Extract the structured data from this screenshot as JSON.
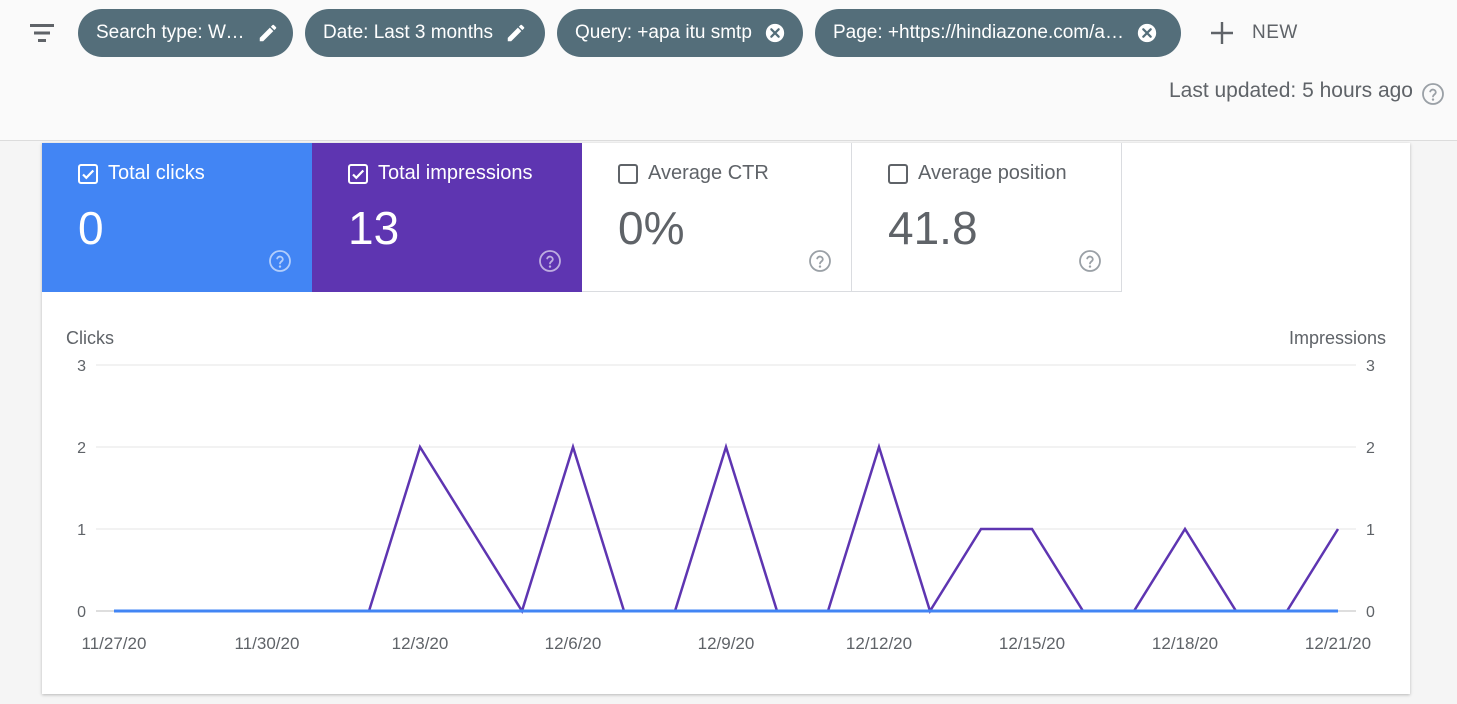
{
  "filters": {
    "chips": [
      {
        "label": "Search type: Web",
        "action": "edit"
      },
      {
        "label": "Date: Last 3 months",
        "action": "edit"
      },
      {
        "label": "Query: +apa itu smtp",
        "action": "remove"
      },
      {
        "label": "Page: +https://hindiazone.com/a…",
        "action": "remove"
      }
    ],
    "new_label": "NEW"
  },
  "status": {
    "last_updated": "Last updated: 5 hours ago"
  },
  "metrics": [
    {
      "label": "Total clicks",
      "value": "0",
      "checked": true,
      "color": "#4285f4"
    },
    {
      "label": "Total impressions",
      "value": "13",
      "checked": true,
      "color": "#5e35b1"
    },
    {
      "label": "Average CTR",
      "value": "0%",
      "checked": false
    },
    {
      "label": "Average position",
      "value": "41.8",
      "checked": false
    }
  ],
  "chart_data": {
    "type": "line",
    "left_axis_label": "Clicks",
    "right_axis_label": "Impressions",
    "y_left_ticks": [
      "0",
      "1",
      "2",
      "3"
    ],
    "y_right_ticks": [
      "0",
      "1",
      "2",
      "3"
    ],
    "ylim": [
      0,
      3
    ],
    "x_tick_labels": [
      "11/27/20",
      "11/30/20",
      "12/3/20",
      "12/6/20",
      "12/9/20",
      "12/12/20",
      "12/15/20",
      "12/18/20",
      "12/21/20"
    ],
    "x": [
      "11/27/20",
      "11/28/20",
      "11/29/20",
      "11/30/20",
      "12/1/20",
      "12/2/20",
      "12/3/20",
      "12/4/20",
      "12/5/20",
      "12/6/20",
      "12/7/20",
      "12/8/20",
      "12/9/20",
      "12/10/20",
      "12/11/20",
      "12/12/20",
      "12/13/20",
      "12/14/20",
      "12/15/20",
      "12/16/20",
      "12/17/20",
      "12/18/20",
      "12/19/20",
      "12/20/20",
      "12/21/20"
    ],
    "series": [
      {
        "name": "Impressions",
        "axis": "right",
        "color": "#5e35b1",
        "values": [
          0,
          0,
          0,
          0,
          0,
          0,
          2,
          1,
          0,
          2,
          0,
          0,
          2,
          0,
          0,
          2,
          0,
          1,
          1,
          0,
          0,
          1,
          0,
          0,
          1
        ]
      },
      {
        "name": "Clicks",
        "axis": "left",
        "color": "#4285f4",
        "values": [
          0,
          0,
          0,
          0,
          0,
          0,
          0,
          0,
          0,
          0,
          0,
          0,
          0,
          0,
          0,
          0,
          0,
          0,
          0,
          0,
          0,
          0,
          0,
          0,
          0
        ]
      }
    ],
    "grid": true
  }
}
